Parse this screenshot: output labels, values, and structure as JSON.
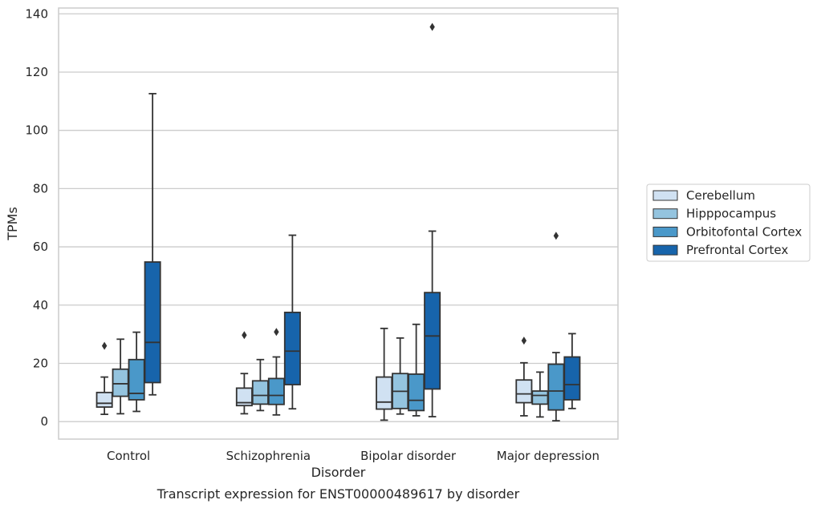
{
  "caption": "Transcript expression for ENST00000489617 by disorder",
  "chart_data": {
    "type": "box",
    "title": "",
    "xlabel": "Disorder",
    "ylabel": "TPMs",
    "ylim": [
      -6,
      142
    ],
    "yticks": [
      0,
      20,
      40,
      60,
      80,
      100,
      120,
      140
    ],
    "grid": "horizontal",
    "legend_position": "right",
    "categories": [
      "Control",
      "Schizophrenia",
      "Bipolar disorder",
      "Major depression"
    ],
    "series": [
      {
        "name": "Cerebellum",
        "color": "#d0e1f2",
        "boxes": [
          {
            "whisker_low": 2.5,
            "q1": 5,
            "median": 6.3,
            "q3": 10,
            "whisker_high": 15.3,
            "outliers": [
              26
            ]
          },
          {
            "whisker_low": 2.7,
            "q1": 5.5,
            "median": 6.5,
            "q3": 11.5,
            "whisker_high": 16.5,
            "outliers": [
              29.7
            ]
          },
          {
            "whisker_low": 0.5,
            "q1": 4.3,
            "median": 6.7,
            "q3": 15.3,
            "whisker_high": 32,
            "outliers": []
          },
          {
            "whisker_low": 2,
            "q1": 6.5,
            "median": 9.5,
            "q3": 14.3,
            "whisker_high": 20.2,
            "outliers": [
              27.8
            ]
          }
        ]
      },
      {
        "name": "Hipppocampus",
        "color": "#94c4df",
        "boxes": [
          {
            "whisker_low": 2.7,
            "q1": 8.7,
            "median": 13,
            "q3": 18,
            "whisker_high": 28.3,
            "outliers": []
          },
          {
            "whisker_low": 3.8,
            "q1": 6,
            "median": 9,
            "q3": 14,
            "whisker_high": 21.3,
            "outliers": []
          },
          {
            "whisker_low": 2.6,
            "q1": 4.5,
            "median": 10.4,
            "q3": 16.5,
            "whisker_high": 28.7,
            "outliers": []
          },
          {
            "whisker_low": 1.6,
            "q1": 6,
            "median": 9,
            "q3": 10.5,
            "whisker_high": 17,
            "outliers": []
          }
        ]
      },
      {
        "name": "Orbitofontal Cortex",
        "color": "#4a98c9",
        "boxes": [
          {
            "whisker_low": 3.5,
            "q1": 7.5,
            "median": 9.7,
            "q3": 21.3,
            "whisker_high": 30.7,
            "outliers": []
          },
          {
            "whisker_low": 2.3,
            "q1": 5.9,
            "median": 9,
            "q3": 14.8,
            "whisker_high": 22.2,
            "outliers": [
              30.8
            ]
          },
          {
            "whisker_low": 2,
            "q1": 3.8,
            "median": 7.3,
            "q3": 16.3,
            "whisker_high": 33.4,
            "outliers": []
          },
          {
            "whisker_low": 0.3,
            "q1": 4,
            "median": 10.5,
            "q3": 19.7,
            "whisker_high": 23.7,
            "outliers": [
              63.8
            ]
          }
        ]
      },
      {
        "name": "Prefrontal Cortex",
        "color": "#1764ab",
        "boxes": [
          {
            "whisker_low": 9.2,
            "q1": 13.4,
            "median": 27.2,
            "q3": 54.8,
            "whisker_high": 112.6,
            "outliers": []
          },
          {
            "whisker_low": 4.4,
            "q1": 12.7,
            "median": 24.2,
            "q3": 37.5,
            "whisker_high": 64,
            "outliers": []
          },
          {
            "whisker_low": 1.7,
            "q1": 11.2,
            "median": 29.4,
            "q3": 44.3,
            "whisker_high": 65.4,
            "outliers": [
              135.5
            ]
          },
          {
            "whisker_low": 4.5,
            "q1": 7.5,
            "median": 12.7,
            "q3": 22.2,
            "whisker_high": 30.2,
            "outliers": []
          }
        ]
      }
    ]
  }
}
